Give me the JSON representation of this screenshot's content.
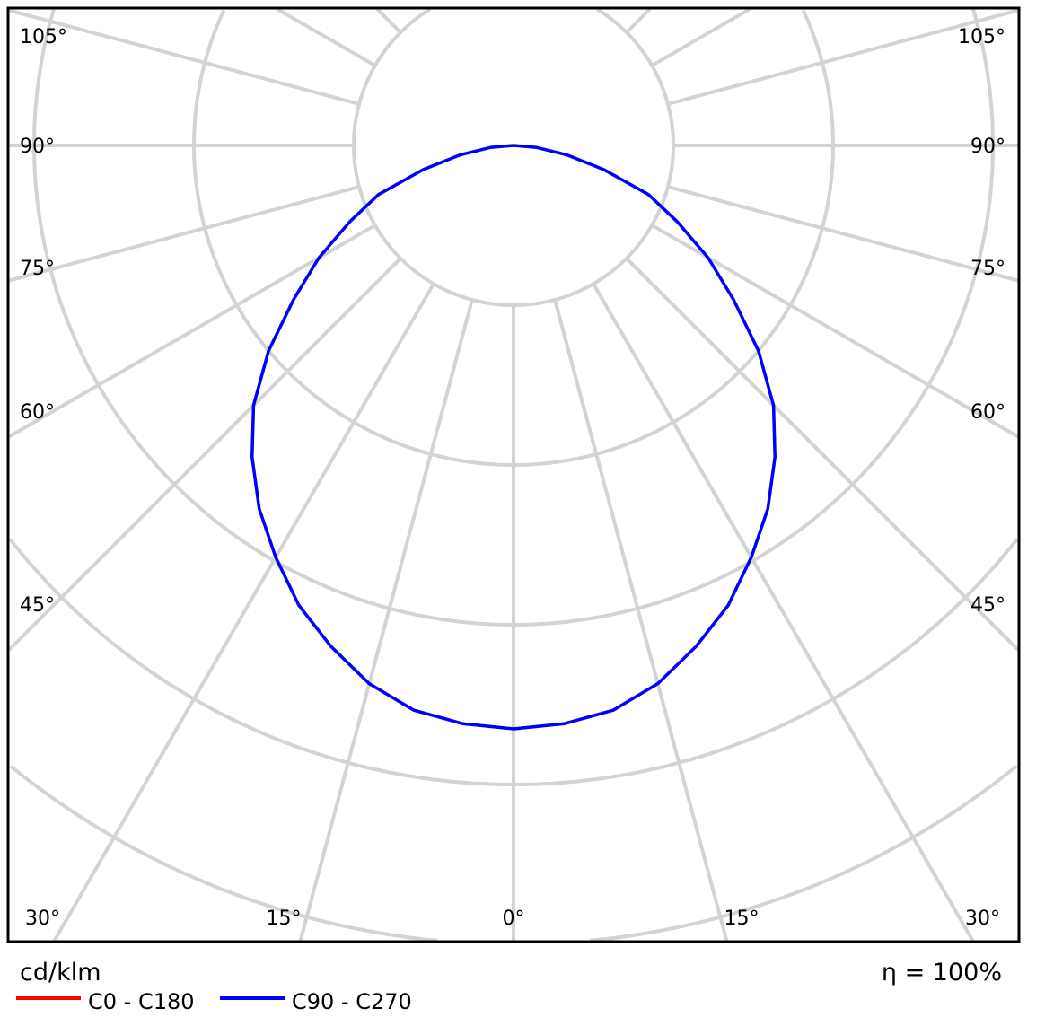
{
  "chart_data": {
    "type": "polar",
    "unit_label": "cd/klm",
    "efficiency_label": "η = 100%",
    "angle_labels": {
      "left": [
        "105°",
        "90°",
        "75°",
        "60°",
        "45°"
      ],
      "right": [
        "105°",
        "90°",
        "75°",
        "60°",
        "45°"
      ],
      "bottom": [
        "30°",
        "15°",
        "0°",
        "15°",
        "30°"
      ]
    },
    "grid": true,
    "radial_step_deg": 15,
    "legend_placement": "bottom-left",
    "angles_deg": [
      0,
      5,
      10,
      15,
      20,
      25,
      30,
      35,
      40,
      45,
      50,
      55,
      60,
      65,
      70,
      75,
      80,
      85,
      90
    ],
    "series": [
      {
        "name": "C0 - C180",
        "color": "#ff0000",
        "values": [
          100,
          99.5,
          98.3,
          95.5,
          91.4,
          87,
          81.5,
          76,
          69.7,
          63,
          54.8,
          46,
          38.5,
          31,
          24.6,
          16,
          9.2,
          4,
          0
        ]
      },
      {
        "name": "C90 - C270",
        "color": "#0000ff",
        "values": [
          100,
          99.5,
          98.3,
          95.5,
          91.4,
          87,
          81.5,
          76,
          69.7,
          63,
          54.8,
          46,
          38.5,
          31,
          24.6,
          16,
          9.2,
          4,
          0
        ]
      }
    ]
  }
}
